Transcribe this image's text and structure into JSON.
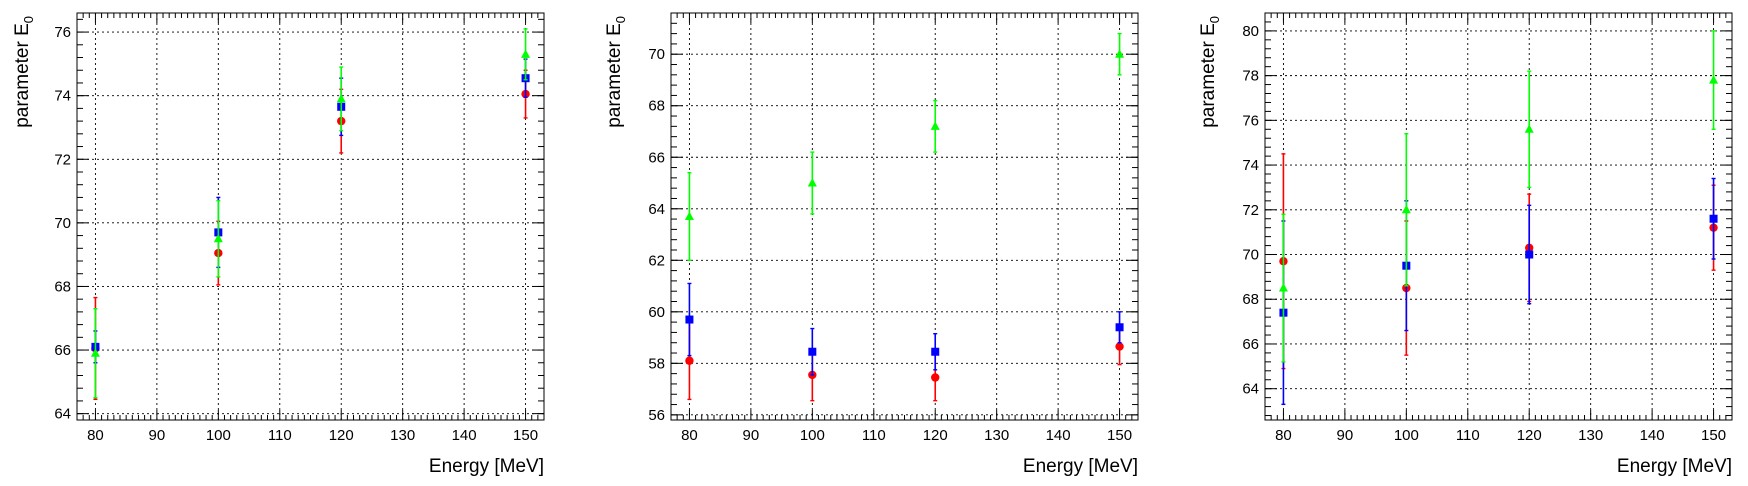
{
  "chart_data": [
    {
      "type": "scatter",
      "xlabel": "Energy [MeV]",
      "ylabel": "parameter E",
      "ylabel_sub": "0",
      "xlim": [
        77,
        153
      ],
      "ylim": [
        63.8,
        76.6
      ],
      "x_ticks": [
        80,
        90,
        100,
        110,
        120,
        130,
        140,
        150
      ],
      "y_ticks": [
        64,
        66,
        68,
        70,
        72,
        74,
        76
      ],
      "grid": true,
      "series": [
        {
          "color": "#ff0000",
          "marker": "circle",
          "x": [
            80,
            100,
            120,
            150
          ],
          "y": [
            66.05,
            69.05,
            73.2,
            74.05
          ],
          "err": [
            1.6,
            1.0,
            1.0,
            0.75
          ]
        },
        {
          "color": "#0000ff",
          "marker": "square",
          "x": [
            80,
            100,
            120,
            150
          ],
          "y": [
            66.1,
            69.7,
            73.65,
            74.55
          ],
          "err": [
            0.5,
            1.1,
            0.9,
            0.6
          ]
        },
        {
          "color": "#00ff00",
          "marker": "triangle",
          "x": [
            80,
            100,
            120,
            150
          ],
          "y": [
            65.9,
            69.5,
            73.9,
            75.3
          ],
          "err": [
            1.4,
            1.2,
            1.0,
            0.8
          ]
        }
      ]
    },
    {
      "type": "scatter",
      "xlabel": "Energy [MeV]",
      "ylabel": "parameter E",
      "ylabel_sub": "0",
      "xlim": [
        77,
        153
      ],
      "ylim": [
        55.8,
        71.6
      ],
      "x_ticks": [
        80,
        90,
        100,
        110,
        120,
        130,
        140,
        150
      ],
      "y_ticks": [
        56,
        58,
        60,
        62,
        64,
        66,
        68,
        70
      ],
      "grid": true,
      "series": [
        {
          "color": "#ff0000",
          "marker": "circle",
          "x": [
            80,
            100,
            120,
            150
          ],
          "y": [
            58.1,
            57.55,
            57.45,
            58.65
          ],
          "err": [
            1.5,
            1.0,
            0.9,
            0.7
          ]
        },
        {
          "color": "#0000ff",
          "marker": "square",
          "x": [
            80,
            100,
            120,
            150
          ],
          "y": [
            59.7,
            58.45,
            58.45,
            59.4
          ],
          "err": [
            1.4,
            0.9,
            0.7,
            0.6
          ]
        },
        {
          "color": "#00ff00",
          "marker": "triangle",
          "x": [
            80,
            100,
            120,
            150
          ],
          "y": [
            63.7,
            65.0,
            67.2,
            70.0
          ],
          "err": [
            1.7,
            1.2,
            1.0,
            0.8
          ]
        }
      ]
    },
    {
      "type": "scatter",
      "xlabel": "Energy [MeV]",
      "ylabel": "parameter E",
      "ylabel_sub": "0",
      "xlim": [
        77,
        153
      ],
      "ylim": [
        62.6,
        80.8
      ],
      "x_ticks": [
        80,
        90,
        100,
        110,
        120,
        130,
        140,
        150
      ],
      "y_ticks": [
        64,
        66,
        68,
        70,
        72,
        74,
        76,
        78,
        80
      ],
      "grid": true,
      "series": [
        {
          "color": "#ff0000",
          "marker": "circle",
          "x": [
            80,
            100,
            120,
            150
          ],
          "y": [
            69.7,
            68.5,
            70.3,
            71.2
          ],
          "err": [
            4.8,
            3.0,
            2.4,
            1.9
          ]
        },
        {
          "color": "#0000ff",
          "marker": "square",
          "x": [
            80,
            100,
            120,
            150
          ],
          "y": [
            67.4,
            69.5,
            70.0,
            71.6
          ],
          "err": [
            4.1,
            2.9,
            2.2,
            1.8
          ]
        },
        {
          "color": "#00ff00",
          "marker": "triangle",
          "x": [
            80,
            100,
            120,
            150
          ],
          "y": [
            68.5,
            72.0,
            75.6,
            77.8
          ],
          "err": [
            3.3,
            3.4,
            2.6,
            2.2
          ]
        }
      ]
    }
  ]
}
